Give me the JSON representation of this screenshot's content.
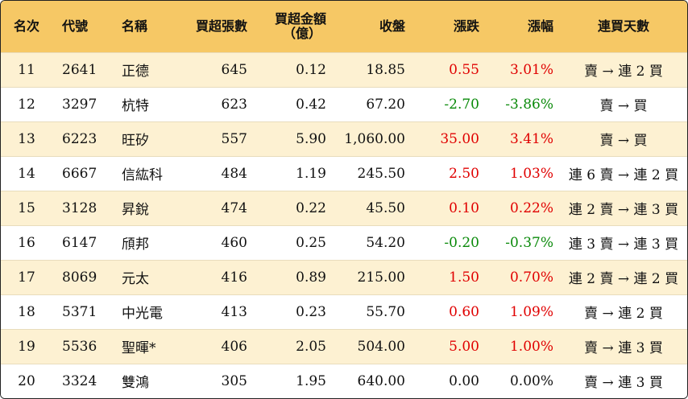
{
  "headers": {
    "rank": "名次",
    "code": "代號",
    "name": "名稱",
    "net_buy_lots": "買超張數",
    "net_buy_amount_line1": "買超金額",
    "net_buy_amount_line2": "（億）",
    "close": "收盤",
    "change": "漲跌",
    "change_pct": "漲幅",
    "streak": "連買天數"
  },
  "colors": {
    "header_bg": "#f6c865",
    "odd_row_bg": "#fdf1d2",
    "up": "#e00000",
    "down": "#0a8a0a"
  },
  "rows": [
    {
      "rank": "11",
      "code": "2641",
      "name": "正德",
      "lots": "645",
      "amount": "0.12",
      "close": "18.85",
      "change": "0.55",
      "pct": "3.01%",
      "dir": "up",
      "streak": "賣 → 連 2 買"
    },
    {
      "rank": "12",
      "code": "3297",
      "name": "杭特",
      "lots": "623",
      "amount": "0.42",
      "close": "67.20",
      "change": "-2.70",
      "pct": "-3.86%",
      "dir": "down",
      "streak": "賣 → 買"
    },
    {
      "rank": "13",
      "code": "6223",
      "name": "旺矽",
      "lots": "557",
      "amount": "5.90",
      "close": "1,060.00",
      "change": "35.00",
      "pct": "3.41%",
      "dir": "up",
      "streak": "賣 → 買"
    },
    {
      "rank": "14",
      "code": "6667",
      "name": "信紘科",
      "lots": "484",
      "amount": "1.19",
      "close": "245.50",
      "change": "2.50",
      "pct": "1.03%",
      "dir": "up",
      "streak": "連 6 賣 → 連 2 買"
    },
    {
      "rank": "15",
      "code": "3128",
      "name": "昇銳",
      "lots": "474",
      "amount": "0.22",
      "close": "45.50",
      "change": "0.10",
      "pct": "0.22%",
      "dir": "up",
      "streak": "連 2 賣 → 連 3 買"
    },
    {
      "rank": "16",
      "code": "6147",
      "name": "頎邦",
      "lots": "460",
      "amount": "0.25",
      "close": "54.20",
      "change": "-0.20",
      "pct": "-0.37%",
      "dir": "down",
      "streak": "連 3 賣 → 連 3 買"
    },
    {
      "rank": "17",
      "code": "8069",
      "name": "元太",
      "lots": "416",
      "amount": "0.89",
      "close": "215.00",
      "change": "1.50",
      "pct": "0.70%",
      "dir": "up",
      "streak": "連 2 賣 → 連 2 買"
    },
    {
      "rank": "18",
      "code": "5371",
      "name": "中光電",
      "lots": "413",
      "amount": "0.23",
      "close": "55.70",
      "change": "0.60",
      "pct": "1.09%",
      "dir": "up",
      "streak": "賣 → 連 2 買"
    },
    {
      "rank": "19",
      "code": "5536",
      "name": "聖暉*",
      "lots": "406",
      "amount": "2.05",
      "close": "504.00",
      "change": "5.00",
      "pct": "1.00%",
      "dir": "up",
      "streak": "賣 → 連 3 買"
    },
    {
      "rank": "20",
      "code": "3324",
      "name": "雙鴻",
      "lots": "305",
      "amount": "1.95",
      "close": "640.00",
      "change": "0.00",
      "pct": "0.00%",
      "dir": "flat",
      "streak": "賣 → 連 3 買"
    }
  ]
}
